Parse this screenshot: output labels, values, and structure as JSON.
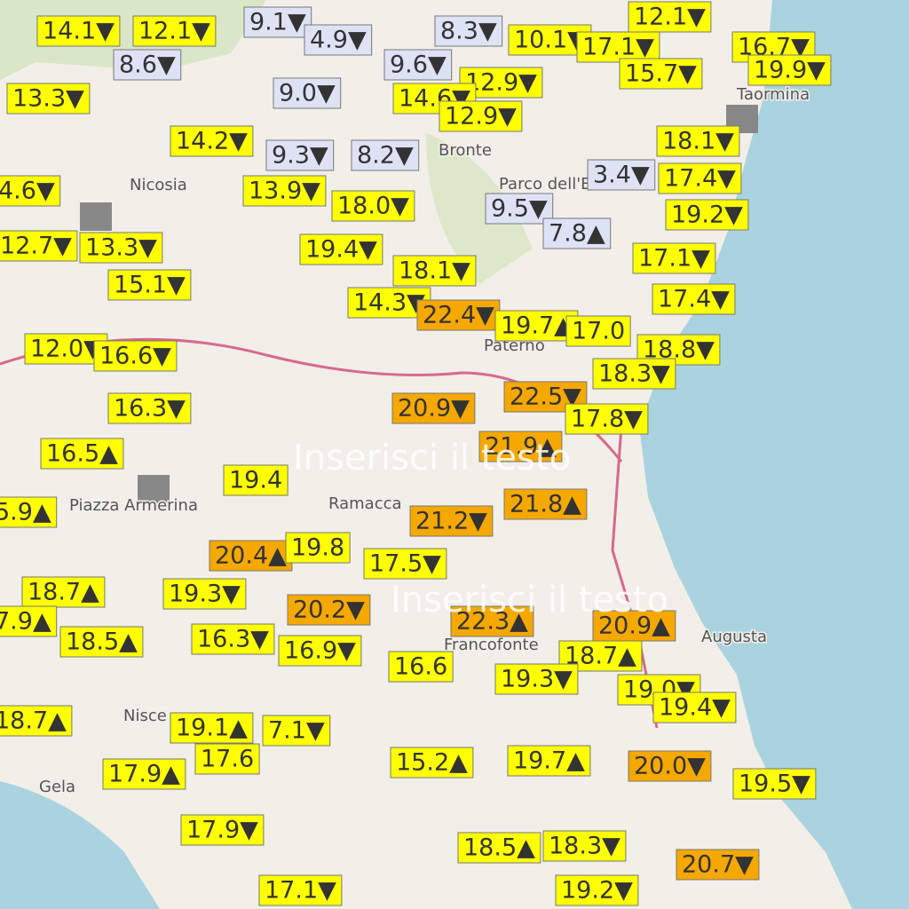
{
  "watermarks": [
    "Inserisci il testo",
    "Inserisci il testo"
  ],
  "places": [
    "Nicosia",
    "Bronte",
    "Parco dell'Etna",
    "Paternò",
    "Piazza Armerina",
    "Ramacca",
    "Francofonte",
    "Augusta",
    "Nisce",
    "Gela",
    "Taormina"
  ],
  "stations": [
    {
      "text": "14.1▼",
      "color": "#ffff00"
    },
    {
      "text": "12.1▼",
      "color": "#ffff00"
    },
    {
      "text": "9.1▼",
      "color": "#dde3f5"
    },
    {
      "text": "4.9▼",
      "color": "#dde3f5"
    },
    {
      "text": "8.3▼",
      "color": "#dde3f5"
    },
    {
      "text": "10.1▼",
      "color": "#ffff00"
    },
    {
      "text": "12.1▼",
      "color": "#ffff00"
    },
    {
      "text": "17.1▼",
      "color": "#ffff00"
    },
    {
      "text": "16.7▼",
      "color": "#ffff00"
    },
    {
      "text": "19.9▼",
      "color": "#ffff00"
    },
    {
      "text": "15.7▼",
      "color": "#ffff00"
    },
    {
      "text": "8.6▼",
      "color": "#dde3f5"
    },
    {
      "text": "9.6▼",
      "color": "#dde3f5"
    },
    {
      "text": "12.9▼",
      "color": "#ffff00"
    },
    {
      "text": "13.3▼",
      "color": "#ffff00"
    },
    {
      "text": "9.0▼",
      "color": "#dde3f5"
    },
    {
      "text": "14.6▼",
      "color": "#ffff00"
    },
    {
      "text": "12.9▼",
      "color": "#ffff00"
    },
    {
      "text": "14.2▼",
      "color": "#ffff00"
    },
    {
      "text": "9.3▼",
      "color": "#dde3f5"
    },
    {
      "text": "8.2▼",
      "color": "#dde3f5"
    },
    {
      "text": "18.1▼",
      "color": "#ffff00"
    },
    {
      "text": "3.4▼",
      "color": "#dde3f5"
    },
    {
      "text": "17.4▼",
      "color": "#ffff00"
    },
    {
      "text": "13.9▼",
      "color": "#ffff00"
    },
    {
      "text": "4.6▼",
      "color": "#ffff00"
    },
    {
      "text": "18.0▼",
      "color": "#ffff00"
    },
    {
      "text": "9.5▼",
      "color": "#dde3f5"
    },
    {
      "text": "19.2▼",
      "color": "#ffff00"
    },
    {
      "text": "7.8▲",
      "color": "#dde3f5"
    },
    {
      "text": "12.7▼",
      "color": "#ffff00"
    },
    {
      "text": "13.3▼",
      "color": "#ffff00"
    },
    {
      "text": "19.4▼",
      "color": "#ffff00"
    },
    {
      "text": "18.1▼",
      "color": "#ffff00"
    },
    {
      "text": "17.1▼",
      "color": "#ffff00"
    },
    {
      "text": "15.1▼",
      "color": "#ffff00"
    },
    {
      "text": "14.3▼",
      "color": "#ffff00"
    },
    {
      "text": "22.4▼",
      "color": "#f5a800"
    },
    {
      "text": "19.7▲",
      "color": "#ffff00"
    },
    {
      "text": "17.0",
      "color": "#ffff00"
    },
    {
      "text": "17.4▼",
      "color": "#ffff00"
    },
    {
      "text": "18.8▼",
      "color": "#ffff00"
    },
    {
      "text": "12.0▼",
      "color": "#ffff00"
    },
    {
      "text": "16.6▼",
      "color": "#ffff00"
    },
    {
      "text": "18.3▼",
      "color": "#ffff00"
    },
    {
      "text": "22.5▼",
      "color": "#f5a800"
    },
    {
      "text": "20.9▼",
      "color": "#f5a800"
    },
    {
      "text": "17.8▼",
      "color": "#ffff00"
    },
    {
      "text": "16.3▼",
      "color": "#ffff00"
    },
    {
      "text": "16.5▲",
      "color": "#ffff00"
    },
    {
      "text": "21.9▲",
      "color": "#f5a800"
    },
    {
      "text": "19.4",
      "color": "#ffff00"
    },
    {
      "text": "21.8▲",
      "color": "#f5a800"
    },
    {
      "text": "21.2▼",
      "color": "#f5a800"
    },
    {
      "text": "5.9▲",
      "color": "#ffff00"
    },
    {
      "text": "20.4▲",
      "color": "#f5a800"
    },
    {
      "text": "19.8",
      "color": "#ffff00"
    },
    {
      "text": "17.5▼",
      "color": "#ffff00"
    },
    {
      "text": "18.7▲",
      "color": "#ffff00"
    },
    {
      "text": "19.3▼",
      "color": "#ffff00"
    },
    {
      "text": "20.2▼",
      "color": "#f5a800"
    },
    {
      "text": "22.3▲",
      "color": "#f5a800"
    },
    {
      "text": "20.9▲",
      "color": "#f5a800"
    },
    {
      "text": "7.9▲",
      "color": "#ffff00"
    },
    {
      "text": "18.5▲",
      "color": "#ffff00"
    },
    {
      "text": "16.3▼",
      "color": "#ffff00"
    },
    {
      "text": "16.9▼",
      "color": "#ffff00"
    },
    {
      "text": "16.6",
      "color": "#ffff00"
    },
    {
      "text": "18.7▲",
      "color": "#ffff00"
    },
    {
      "text": "19.3▼",
      "color": "#ffff00"
    },
    {
      "text": "19.0▼",
      "color": "#ffff00"
    },
    {
      "text": "19.4▼",
      "color": "#ffff00"
    },
    {
      "text": "18.7▲",
      "color": "#ffff00"
    },
    {
      "text": "19.1▲",
      "color": "#ffff00"
    },
    {
      "text": "7.1▼",
      "color": "#ffff00"
    },
    {
      "text": "17.6",
      "color": "#ffff00"
    },
    {
      "text": "15.2▲",
      "color": "#ffff00"
    },
    {
      "text": "19.7▲",
      "color": "#ffff00"
    },
    {
      "text": "20.0▼",
      "color": "#f5a800"
    },
    {
      "text": "17.9▲",
      "color": "#ffff00"
    },
    {
      "text": "19.5▼",
      "color": "#ffff00"
    },
    {
      "text": "17.9▼",
      "color": "#ffff00"
    },
    {
      "text": "18.5▲",
      "color": "#ffff00"
    },
    {
      "text": "18.3▼",
      "color": "#ffff00"
    },
    {
      "text": "20.7▼",
      "color": "#f5a800"
    },
    {
      "text": "17.1▼",
      "color": "#ffff00"
    },
    {
      "text": "19.2▼",
      "color": "#ffff00"
    }
  ]
}
